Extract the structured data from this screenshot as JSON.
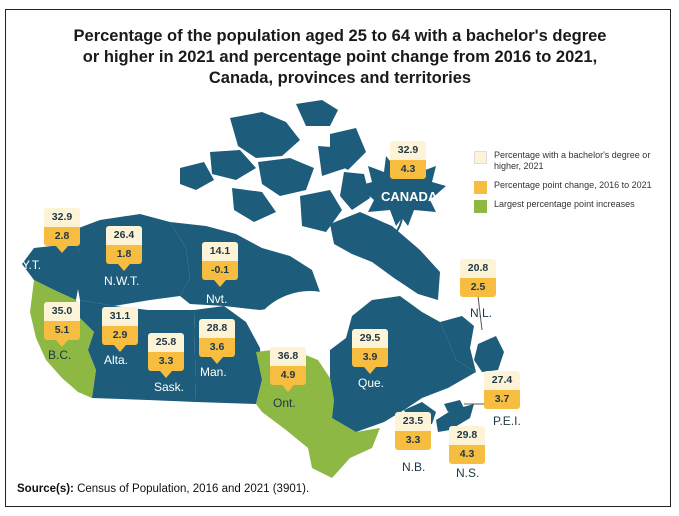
{
  "title": {
    "line1": "Percentage of the population aged 25 to 64 with a bachelor's degree",
    "line2": "or higher in 2021 and percentage point change from 2016 to 2021,",
    "line3": "Canada, provinces and territories"
  },
  "legend": {
    "items": [
      {
        "label": "Percentage with a bachelor's degree or higher, 2021",
        "color": "#fdf3d6"
      },
      {
        "label": "Percentage point change, 2016 to 2021",
        "color": "#f6bd41"
      },
      {
        "label": "Largest percentage point increases",
        "color": "#8db843"
      }
    ]
  },
  "colors": {
    "region": "#1d5c7a",
    "highlight": "#8db843",
    "water": "#ffffff"
  },
  "national": {
    "name": "CANADA",
    "pct_2021": "32.9",
    "change": "4.3"
  },
  "regions": [
    {
      "id": "yt",
      "name": "Y.T.",
      "pct_2021": "32.9",
      "change": "2.8",
      "highlight": false
    },
    {
      "id": "nwt",
      "name": "N.W.T.",
      "pct_2021": "26.4",
      "change": "1.8",
      "highlight": false
    },
    {
      "id": "nvt",
      "name": "Nvt.",
      "pct_2021": "14.1",
      "change": "-0.1",
      "highlight": false
    },
    {
      "id": "bc",
      "name": "B.C.",
      "pct_2021": "35.0",
      "change": "5.1",
      "highlight": true
    },
    {
      "id": "ab",
      "name": "Alta.",
      "pct_2021": "31.1",
      "change": "2.9",
      "highlight": false
    },
    {
      "id": "sk",
      "name": "Sask.",
      "pct_2021": "25.8",
      "change": "3.3",
      "highlight": false
    },
    {
      "id": "mb",
      "name": "Man.",
      "pct_2021": "28.8",
      "change": "3.6",
      "highlight": false
    },
    {
      "id": "on",
      "name": "Ont.",
      "pct_2021": "36.8",
      "change": "4.9",
      "highlight": true
    },
    {
      "id": "qc",
      "name": "Que.",
      "pct_2021": "29.5",
      "change": "3.9",
      "highlight": false
    },
    {
      "id": "nl",
      "name": "N.L.",
      "pct_2021": "20.8",
      "change": "2.5",
      "highlight": false
    },
    {
      "id": "pe",
      "name": "P.E.I.",
      "pct_2021": "27.4",
      "change": "3.7",
      "highlight": false
    },
    {
      "id": "nb",
      "name": "N.B.",
      "pct_2021": "23.5",
      "change": "3.3",
      "highlight": false
    },
    {
      "id": "ns",
      "name": "N.S.",
      "pct_2021": "29.8",
      "change": "4.3",
      "highlight": false
    }
  ],
  "source": {
    "label": "Source(s):",
    "text": "Census of Population, 2016 and 2021 (3901)."
  }
}
